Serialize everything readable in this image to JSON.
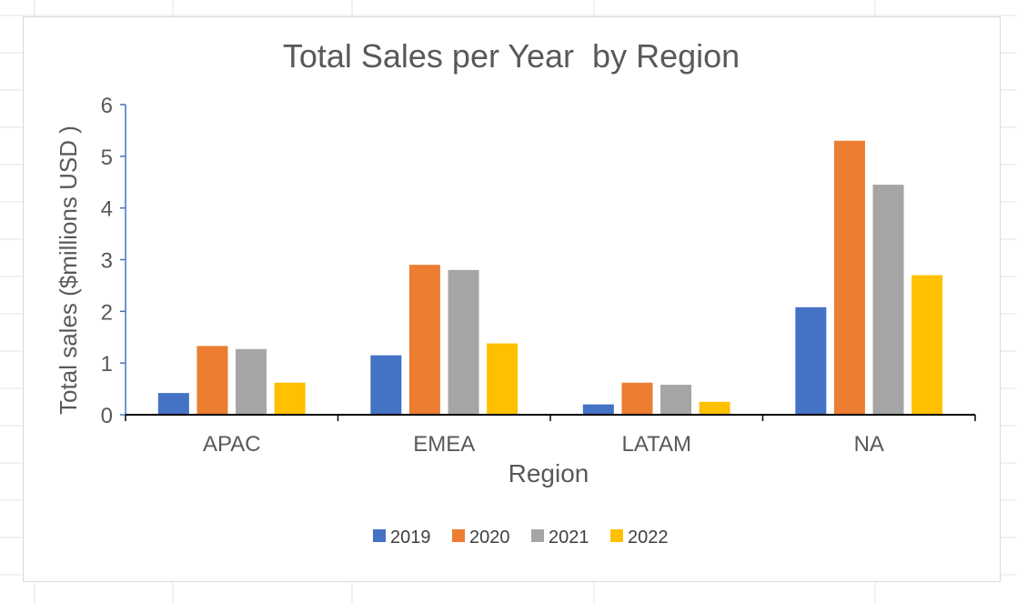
{
  "chart_data": {
    "type": "bar",
    "title": "Total Sales per Year  by Region",
    "xlabel": "Region",
    "ylabel": "Total sales ($millions USD )",
    "categories": [
      "APAC",
      "EMEA",
      "LATAM",
      "NA"
    ],
    "series": [
      {
        "name": "2019",
        "color": "#4472C4",
        "values": [
          0.42,
          1.15,
          0.2,
          2.08
        ]
      },
      {
        "name": "2020",
        "color": "#ED7D31",
        "values": [
          1.33,
          2.9,
          0.62,
          5.3
        ]
      },
      {
        "name": "2021",
        "color": "#A5A5A5",
        "values": [
          1.27,
          2.8,
          0.58,
          4.45
        ]
      },
      {
        "name": "2022",
        "color": "#FFC000",
        "values": [
          0.62,
          1.38,
          0.25,
          2.7
        ]
      }
    ],
    "ylim": [
      0,
      6
    ],
    "yticks": [
      0,
      1,
      2,
      3,
      4,
      5,
      6
    ],
    "grid": false,
    "legend_position": "bottom"
  }
}
